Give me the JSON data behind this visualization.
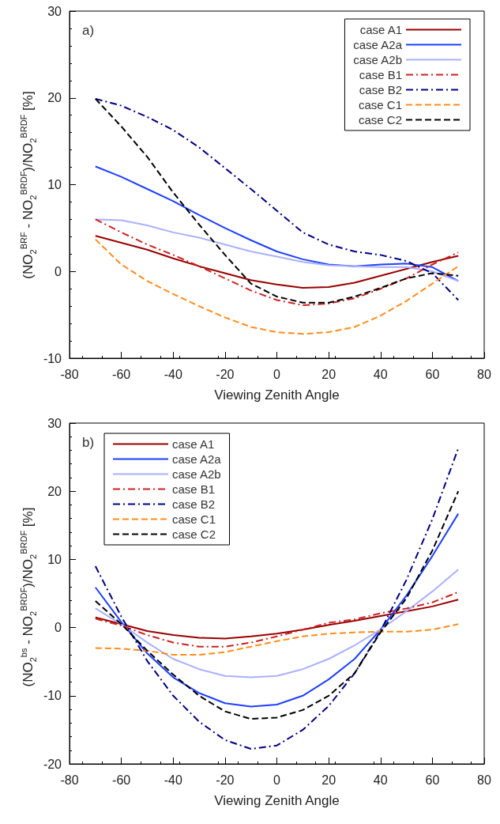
{
  "chart_data": [
    {
      "type": "line",
      "xlabel": "Viewing Zenith Angle",
      "ylabel": "(NO$_{2}$$^{BRF}$ - NO$_{2}$$^{BRDF}$)/NO$_{2}$$^{BRDF}$ [%]",
      "annotations": [
        "a)"
      ],
      "x": [
        -70,
        -60,
        -50,
        -40,
        -30,
        -20,
        -10,
        0,
        10,
        20,
        30,
        40,
        50,
        60,
        70
      ],
      "xlim": [
        -80,
        80
      ],
      "xticks": [
        -80,
        -60,
        -40,
        -20,
        0,
        20,
        40,
        60,
        80
      ],
      "ylim": [
        -10,
        30
      ],
      "yticks": [
        -10,
        0,
        10,
        20,
        30
      ],
      "grid": false,
      "legend": "top right",
      "series": [
        {
          "name": "case A1",
          "color": "#990000",
          "line_style": "solid",
          "values": [
            4.1,
            3.3,
            2.5,
            1.5,
            0.6,
            -0.2,
            -1.0,
            -1.5,
            -1.9,
            -1.8,
            -1.3,
            -0.5,
            0.3,
            1.1,
            1.8
          ]
        },
        {
          "name": "case A2a",
          "color": "#1f3fff",
          "line_style": "solid",
          "values": [
            12.1,
            10.9,
            9.5,
            8.1,
            6.5,
            5.0,
            3.6,
            2.3,
            1.4,
            0.8,
            0.6,
            0.8,
            0.9,
            0.5,
            -1.1
          ]
        },
        {
          "name": "case A2b",
          "color": "#aab0ff",
          "line_style": "solid",
          "values": [
            6.0,
            5.9,
            5.3,
            4.5,
            3.9,
            3.1,
            2.3,
            1.7,
            1.1,
            0.7,
            0.6,
            0.5,
            0.5,
            0.0,
            -1.1
          ]
        },
        {
          "name": "case B1",
          "color": "#cc2222",
          "line_style": "dashdot",
          "values": [
            6.0,
            4.5,
            3.1,
            1.9,
            0.6,
            -0.8,
            -2.2,
            -3.3,
            -3.9,
            -3.7,
            -3.1,
            -2.0,
            -0.8,
            0.8,
            2.2
          ]
        },
        {
          "name": "case B2",
          "color": "#000080",
          "line_style": "dashdot",
          "values": [
            19.9,
            19.1,
            17.8,
            16.3,
            14.3,
            11.9,
            9.5,
            7.0,
            4.5,
            3.1,
            2.3,
            1.9,
            1.2,
            -0.2,
            -3.3
          ]
        },
        {
          "name": "case C1",
          "color": "#ff8c1a",
          "line_style": "dashed",
          "values": [
            3.7,
            0.8,
            -1.1,
            -2.6,
            -4.0,
            -5.3,
            -6.4,
            -7.0,
            -7.2,
            -7.0,
            -6.4,
            -5.1,
            -3.4,
            -1.4,
            0.6
          ]
        },
        {
          "name": "case C2",
          "color": "#000000",
          "line_style": "dashed",
          "values": [
            19.9,
            16.7,
            13.2,
            9.1,
            5.4,
            1.9,
            -1.4,
            -2.9,
            -3.6,
            -3.6,
            -2.9,
            -1.9,
            -0.8,
            -0.2,
            -0.5
          ]
        }
      ]
    },
    {
      "type": "line",
      "xlabel": "Viewing Zenith Angle",
      "ylabel": "(NO$_{2}$$^{bs}$ - NO$_{2}$$^{BRDF}$)/NO$_{2}$$^{BRDF}$ [%]",
      "annotations": [
        "b)"
      ],
      "x": [
        -70,
        -60,
        -50,
        -40,
        -30,
        -20,
        -10,
        0,
        10,
        20,
        30,
        40,
        50,
        60,
        70
      ],
      "xlim": [
        -80,
        80
      ],
      "xticks": [
        -80,
        -60,
        -40,
        -20,
        0,
        20,
        40,
        60,
        80
      ],
      "ylim": [
        -20,
        30
      ],
      "yticks": [
        -20,
        -10,
        0,
        10,
        20,
        30
      ],
      "grid": false,
      "legend": "top left",
      "series": [
        {
          "name": "case A1",
          "color": "#990000",
          "line_style": "solid",
          "values": [
            1.5,
            0.5,
            -0.5,
            -1.1,
            -1.5,
            -1.6,
            -1.3,
            -0.9,
            -0.3,
            0.4,
            1.0,
            1.7,
            2.4,
            3.1,
            4.1
          ]
        },
        {
          "name": "case A2a",
          "color": "#1f3fff",
          "line_style": "solid",
          "values": [
            5.9,
            0.8,
            -3.8,
            -7.3,
            -9.6,
            -11.1,
            -11.6,
            -11.3,
            -10.0,
            -7.6,
            -4.6,
            -0.3,
            4.7,
            10.5,
            16.7
          ]
        },
        {
          "name": "case A2b",
          "color": "#aab0ff",
          "line_style": "solid",
          "values": [
            2.8,
            0.5,
            -2.2,
            -4.6,
            -6.1,
            -7.1,
            -7.3,
            -7.1,
            -6.1,
            -4.6,
            -2.6,
            -0.3,
            2.4,
            5.3,
            8.5
          ]
        },
        {
          "name": "case B1",
          "color": "#cc2222",
          "line_style": "dashdot",
          "values": [
            1.3,
            0.3,
            -1.1,
            -2.2,
            -2.8,
            -2.8,
            -2.2,
            -1.3,
            -0.3,
            0.7,
            1.2,
            2.1,
            2.8,
            3.7,
            5.2
          ]
        },
        {
          "name": "case B2",
          "color": "#000080",
          "line_style": "dashdot",
          "values": [
            9.0,
            1.6,
            -4.9,
            -10.0,
            -13.8,
            -16.5,
            -17.8,
            -17.3,
            -15.0,
            -11.5,
            -6.7,
            -0.5,
            7.0,
            15.9,
            26.3
          ]
        },
        {
          "name": "case C1",
          "color": "#ff8c1a",
          "line_style": "dashed",
          "values": [
            -3.0,
            -3.1,
            -3.4,
            -4.0,
            -4.0,
            -3.6,
            -2.8,
            -2.0,
            -1.3,
            -0.9,
            -0.7,
            -0.6,
            -0.6,
            -0.3,
            0.5
          ]
        },
        {
          "name": "case C2",
          "color": "#000000",
          "line_style": "dashed",
          "values": [
            3.9,
            0.5,
            -3.4,
            -6.9,
            -10.0,
            -12.3,
            -13.4,
            -13.2,
            -12.1,
            -10.0,
            -6.7,
            -0.7,
            4.3,
            11.3,
            20.0
          ]
        }
      ]
    }
  ]
}
